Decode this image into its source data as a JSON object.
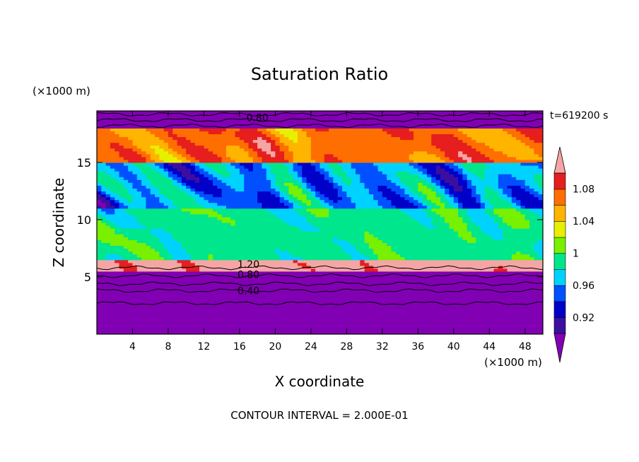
{
  "chart_data": {
    "type": "heatmap",
    "title": "Saturation Ratio",
    "xlabel": "X coordinate",
    "ylabel": "Z coordinate",
    "x_unit": "(×1000 m)",
    "y_unit": "(×1000 m)",
    "time_label": "t=619200 s",
    "footer": "CONTOUR INTERVAL = 2.000E-01",
    "xlim": [
      0,
      50
    ],
    "ylim": [
      0,
      19.5
    ],
    "x_ticks": [
      4,
      8,
      12,
      16,
      20,
      24,
      28,
      32,
      36,
      40,
      44,
      48
    ],
    "y_ticks": [
      5,
      10,
      15
    ],
    "colorbar": {
      "levels": [
        0.9,
        0.92,
        0.94,
        0.96,
        0.98,
        1.0,
        1.02,
        1.04,
        1.06,
        1.08,
        1.1
      ],
      "tick_labels": [
        "0.92",
        "0.96",
        "1",
        "1.04",
        "1.08"
      ],
      "tick_values": [
        0.92,
        0.96,
        1.0,
        1.04,
        1.08
      ],
      "colors": [
        "#3c0fa0",
        "#0000c8",
        "#0050ff",
        "#00d2ff",
        "#00e68c",
        "#78f000",
        "#e6f000",
        "#ffb400",
        "#ff6e00",
        "#e61e1e"
      ],
      "under_color": "#8200b4",
      "over_color": "#f5a5a5"
    },
    "contour_labels": [
      {
        "text": "0.80",
        "x": 18.0,
        "y": 18.9
      },
      {
        "text": "1.20",
        "x": 17.0,
        "y": 6.1
      },
      {
        "text": "0.80",
        "x": 17.0,
        "y": 5.2
      },
      {
        "text": "0.40",
        "x": 17.0,
        "y": 3.8
      }
    ],
    "layers": [
      {
        "z": [
          0.0,
          4.2
        ],
        "value": 0.7
      },
      {
        "z": [
          4.2,
          5.6
        ],
        "value": 0.85
      },
      {
        "z": [
          5.6,
          6.6
        ],
        "value": 1.12
      },
      {
        "z": [
          6.6,
          11.0
        ],
        "value": 0.99
      },
      {
        "z": [
          11.0,
          15.0
        ],
        "value": 0.96
      },
      {
        "z": [
          15.0,
          18.0
        ],
        "value": 1.07
      },
      {
        "z": [
          18.0,
          19.5
        ],
        "value": 0.8
      }
    ]
  }
}
